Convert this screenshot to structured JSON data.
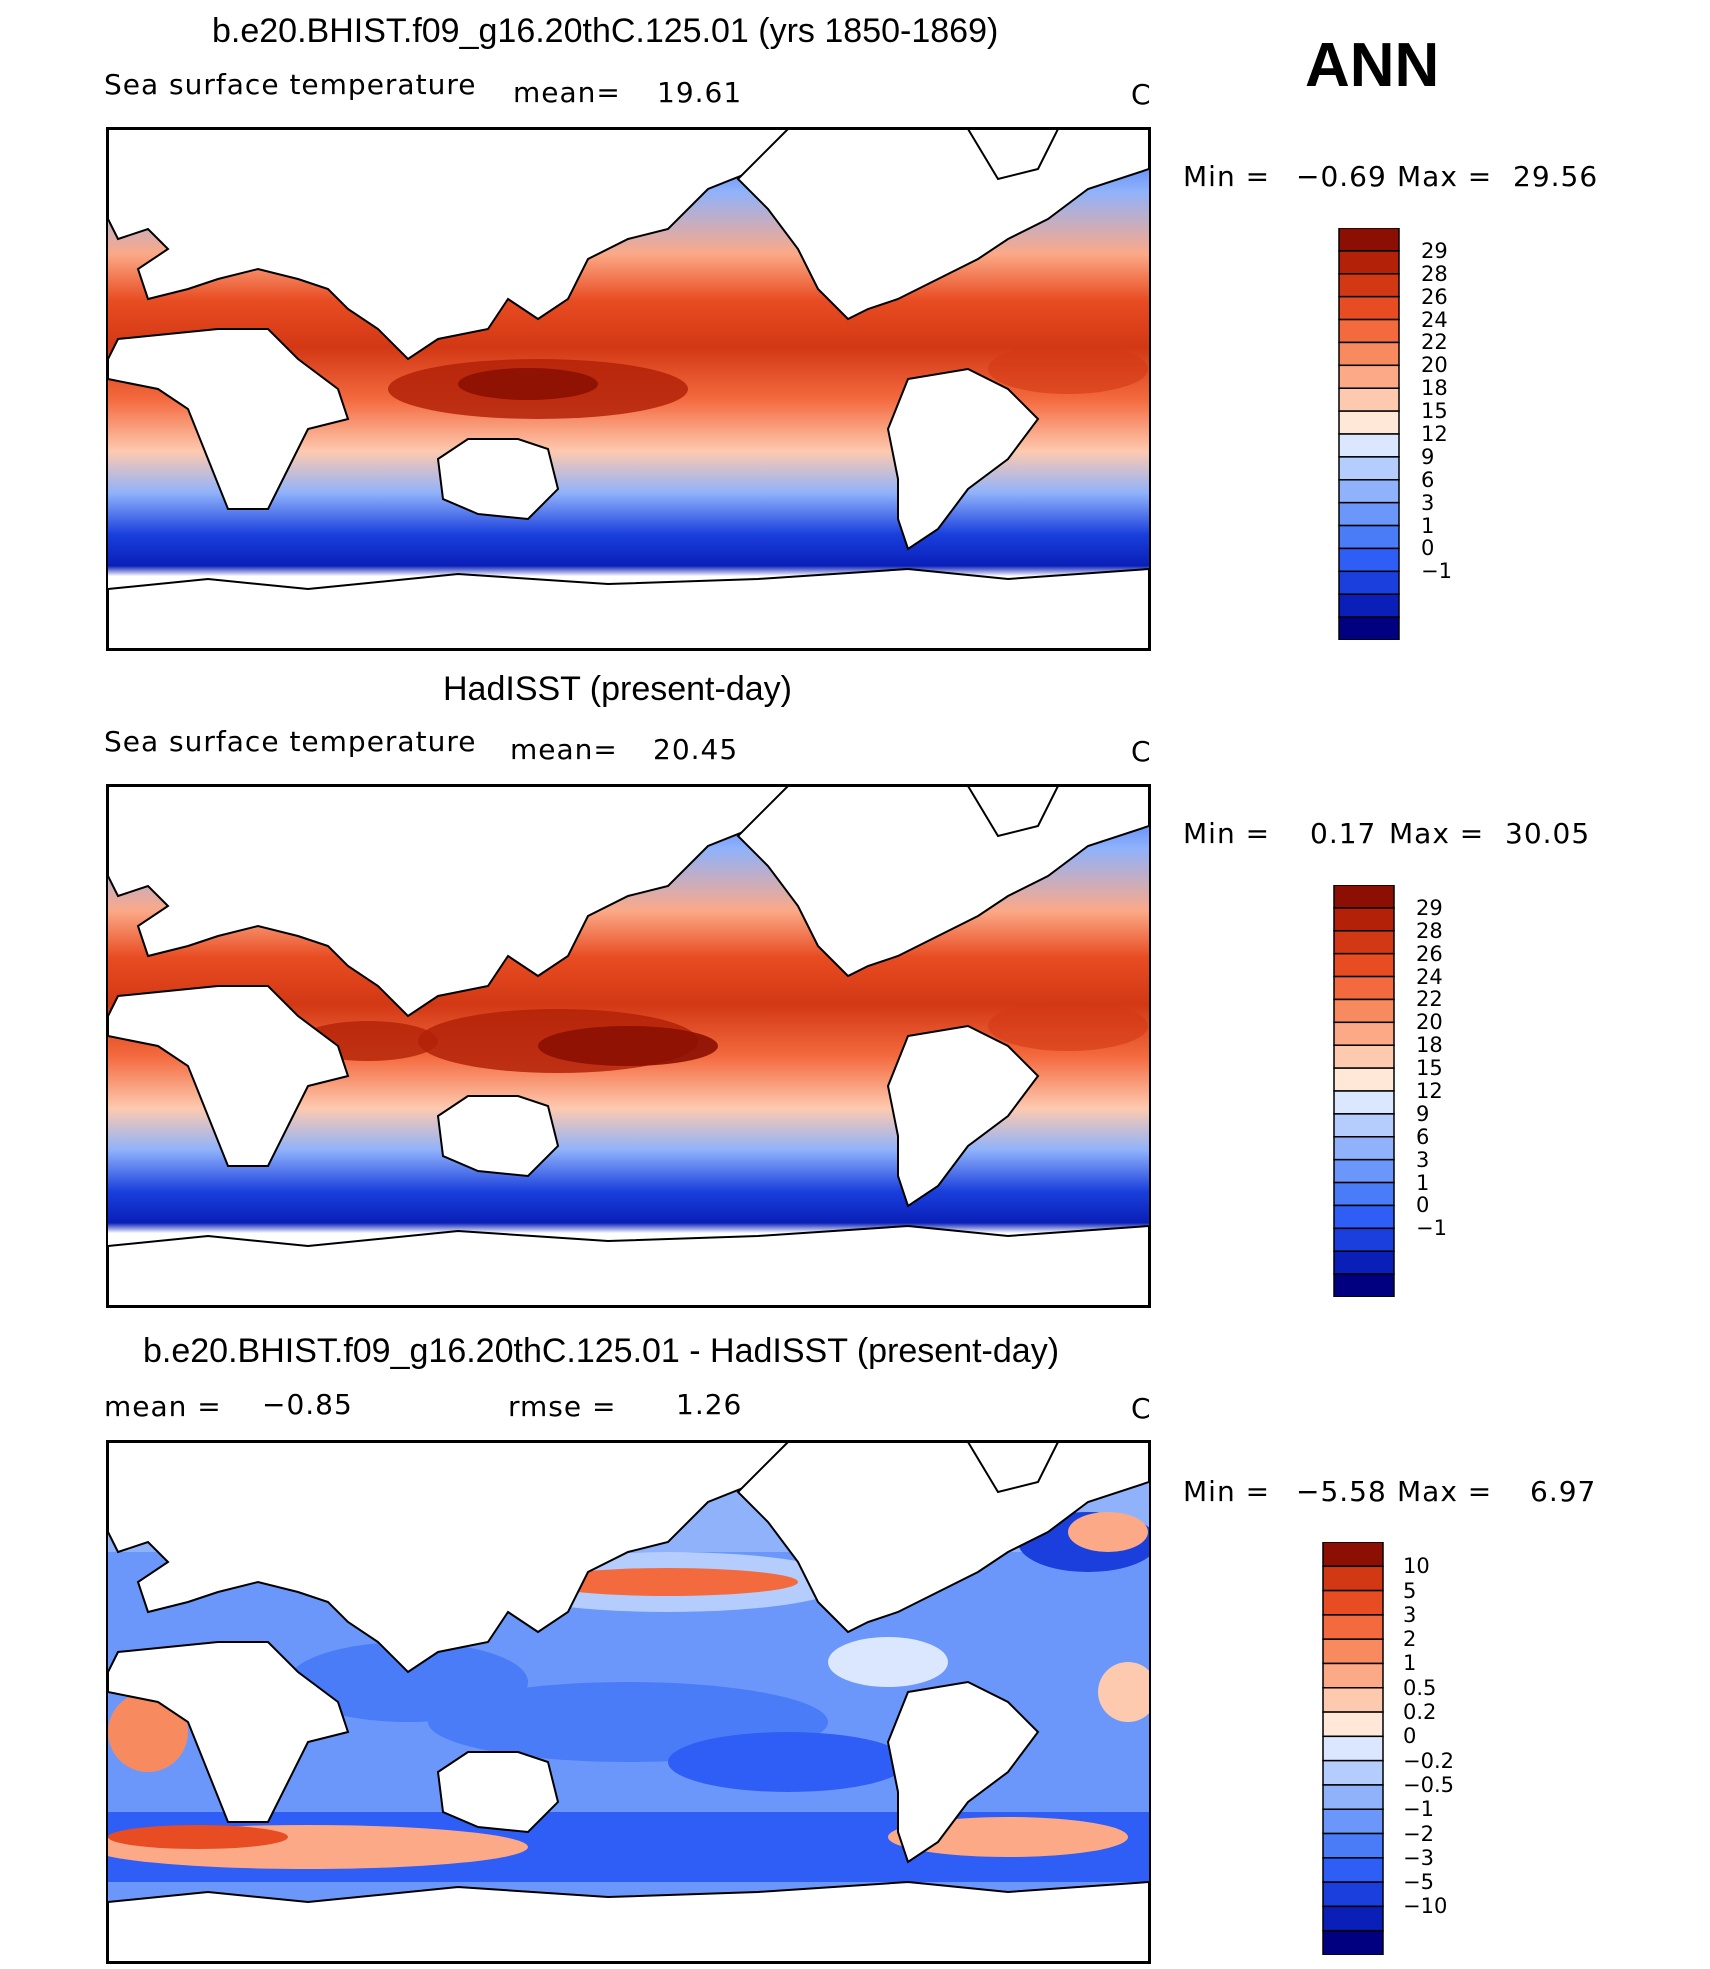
{
  "season": "ANN",
  "colors": {
    "sst": [
      "#000080",
      "#0a1fb8",
      "#1a3fdc",
      "#2e5ef5",
      "#4a7cf8",
      "#6b97fa",
      "#8fb2fb",
      "#b5cdfc",
      "#dbe7fe",
      "#ffe8d8",
      "#fdcab0",
      "#fba987",
      "#f88a60",
      "#f46a3f",
      "#e84c22",
      "#d23814",
      "#b32208",
      "#8b0f02"
    ],
    "diff": [
      "#000080",
      "#0a1fb8",
      "#1a3fdc",
      "#2e5ef5",
      "#4a7cf8",
      "#6b97fa",
      "#8fb2fb",
      "#b5cdfc",
      "#dbe7fe",
      "#ffe8d8",
      "#fdcab0",
      "#fba987",
      "#f88a60",
      "#f46a3f",
      "#e84c22",
      "#d23814",
      "#8b0f02"
    ],
    "land": "#ffffff",
    "coast": "#000000"
  },
  "panels": [
    {
      "title": "b.e20.BHIST.f09_g16.20thC.125.01 (yrs 1850-1869)",
      "left_label": "Sea surface temperature",
      "mean_label": "mean=",
      "mean_value": "19.61",
      "units": "C",
      "min_label": "Min =",
      "min_value": "−0.69",
      "max_label": "Max =",
      "max_value": "29.56",
      "colorbar_levels": [
        "29",
        "28",
        "26",
        "24",
        "22",
        "20",
        "18",
        "15",
        "12",
        "9",
        "6",
        "3",
        "1",
        "0",
        "−1"
      ]
    },
    {
      "title": "HadISST (present-day)",
      "left_label": "Sea surface temperature",
      "mean_label": "mean=",
      "mean_value": "20.45",
      "units": "C",
      "min_label": "Min =",
      "min_value": "0.17",
      "max_label": "Max =",
      "max_value": "30.05",
      "colorbar_levels": [
        "29",
        "28",
        "26",
        "24",
        "22",
        "20",
        "18",
        "15",
        "12",
        "9",
        "6",
        "3",
        "1",
        "0",
        "−1"
      ]
    },
    {
      "title": "b.e20.BHIST.f09_g16.20thC.125.01 - HadISST (present-day)",
      "mean_label": "mean =",
      "mean_value": "−0.85",
      "rmse_label": "rmse =",
      "rmse_value": "1.26",
      "units": "C",
      "min_label": "Min =",
      "min_value": "−5.58",
      "max_label": "Max =",
      "max_value": "6.97",
      "colorbar_levels": [
        "10",
        "5",
        "3",
        "2",
        "1",
        "0.5",
        "0.2",
        "0",
        "−0.2",
        "−0.5",
        "−1",
        "−2",
        "−3",
        "−5",
        "−10"
      ]
    }
  ]
}
